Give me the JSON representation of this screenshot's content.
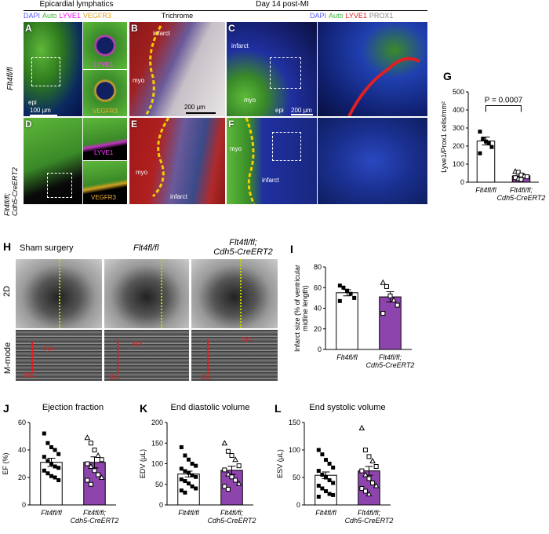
{
  "headers": {
    "epicardial": "Epicardial lymphatics",
    "day14": "Day 14 post-MI",
    "trichrome": "Trichrome"
  },
  "legend_left": [
    {
      "text": "DAPI",
      "color": "#5a5aff"
    },
    {
      "text": "Auto",
      "color": "#3cb43c"
    },
    {
      "text": "LYVE1",
      "color": "#ff00ff"
    },
    {
      "text": "VEGFR3",
      "color": "#e0a020"
    }
  ],
  "legend_right": [
    {
      "text": "DAPI",
      "color": "#5a5aff"
    },
    {
      "text": "Auto",
      "color": "#3cb43c"
    },
    {
      "text": "LYVE1",
      "color": "#e02020"
    },
    {
      "text": "PROX1",
      "color": "#888888"
    }
  ],
  "panels": {
    "A": "A",
    "B": "B",
    "C": "C",
    "D": "D",
    "E": "E",
    "F": "F",
    "G": "G",
    "H": "H",
    "I": "I",
    "J": "J",
    "K": "K",
    "L": "L"
  },
  "row_labels": {
    "top": "Flt4fl/fl",
    "bottom_1": "Flt4fl/fl;",
    "bottom_2": "Cdh5-CreERT2"
  },
  "image_text": {
    "lyve1": "LYVE1",
    "vegfr3": "VEGFR3",
    "epi": "epi",
    "scale_100": "100 μm",
    "scale_200": "200 μm",
    "infarct": "infarct",
    "myo": "myo"
  },
  "echo": {
    "labels": [
      "Sham surgery",
      "Flt4fl/fl",
      "Flt4fl/fl;",
      "Cdh5-CreERT2"
    ],
    "mode_2d": "2D",
    "mode_m": "M-mode",
    "sys": "sys.",
    "dia": "dia."
  },
  "chart_data": [
    {
      "id": "G",
      "type": "bar",
      "categories": [
        "Flt4fl/fl",
        "Flt4fl/fl; Cdh5-CreERT2"
      ],
      "values": [
        228,
        35
      ],
      "errors": [
        22,
        10
      ],
      "points": [
        [
          280,
          240,
          225,
          215,
          195,
          160
        ],
        [
          60,
          55,
          40,
          35,
          30,
          25,
          20,
          15
        ]
      ],
      "ylabel": "Lyve1/Prox1 cells/mm²",
      "ylim": [
        0,
        500
      ],
      "yticks": [
        0,
        100,
        200,
        300,
        400,
        500
      ],
      "annotation": "P = 0.0007"
    },
    {
      "id": "I",
      "type": "bar",
      "categories": [
        "Flt4fl/fl",
        "Flt4fl/fl; Cdh5-CreERT2"
      ],
      "values": [
        55,
        51
      ],
      "errors": [
        3,
        5
      ],
      "points": [
        [
          62,
          60,
          57,
          54,
          50,
          47
        ],
        [
          65,
          61,
          52,
          48,
          43,
          35
        ]
      ],
      "ylabel": "Infarct size (% of ventricular midline length)",
      "ylim": [
        0,
        80
      ],
      "yticks": [
        0,
        20,
        40,
        60,
        80
      ]
    },
    {
      "id": "J",
      "type": "bar",
      "title": "Ejection fraction",
      "categories": [
        "Flt4fl/fl",
        "Flt4fl/fl; Cdh5-CreERT2"
      ],
      "values": [
        31,
        31
      ],
      "errors": [
        3,
        4
      ],
      "points": [
        [
          52,
          45,
          42,
          40,
          37,
          35,
          32,
          30,
          28,
          27,
          25,
          23,
          21,
          20,
          18
        ],
        [
          49,
          45,
          40,
          36,
          33,
          30,
          28,
          25,
          22,
          20,
          18,
          15
        ]
      ],
      "ylabel": "EF (%)",
      "ylim": [
        0,
        60
      ],
      "yticks": [
        0,
        20,
        40,
        60
      ]
    },
    {
      "id": "K",
      "type": "bar",
      "title": "End diastolic volume",
      "categories": [
        "Flt4fl/fl",
        "Flt4fl/fl; Cdh5-CreERT2"
      ],
      "values": [
        75,
        84
      ],
      "errors": [
        7,
        10
      ],
      "points": [
        [
          140,
          120,
          110,
          100,
          95,
          88,
          82,
          78,
          72,
          68,
          62,
          58,
          52,
          45,
          40,
          35,
          30
        ],
        [
          150,
          130,
          120,
          110,
          95,
          85,
          75,
          68,
          60,
          52,
          45,
          38
        ]
      ],
      "ylabel": "EDV (μL)",
      "ylim": [
        0,
        200
      ],
      "yticks": [
        0,
        50,
        100,
        150,
        200
      ]
    },
    {
      "id": "L",
      "type": "bar",
      "title": "End systolic volume",
      "categories": [
        "Flt4fl/fl",
        "Flt4fl/fl; Cdh5-CreERT2"
      ],
      "values": [
        54,
        62
      ],
      "errors": [
        6,
        8
      ],
      "points": [
        [
          100,
          92,
          82,
          75,
          68,
          62,
          55,
          50,
          45,
          40,
          35,
          30,
          25,
          20,
          18,
          15
        ],
        [
          140,
          100,
          88,
          80,
          70,
          62,
          55,
          48,
          40,
          35,
          30,
          25,
          20
        ]
      ],
      "ylabel": "ESV (μL)",
      "ylim": [
        0,
        150
      ],
      "yticks": [
        0,
        50,
        100,
        150
      ]
    }
  ]
}
